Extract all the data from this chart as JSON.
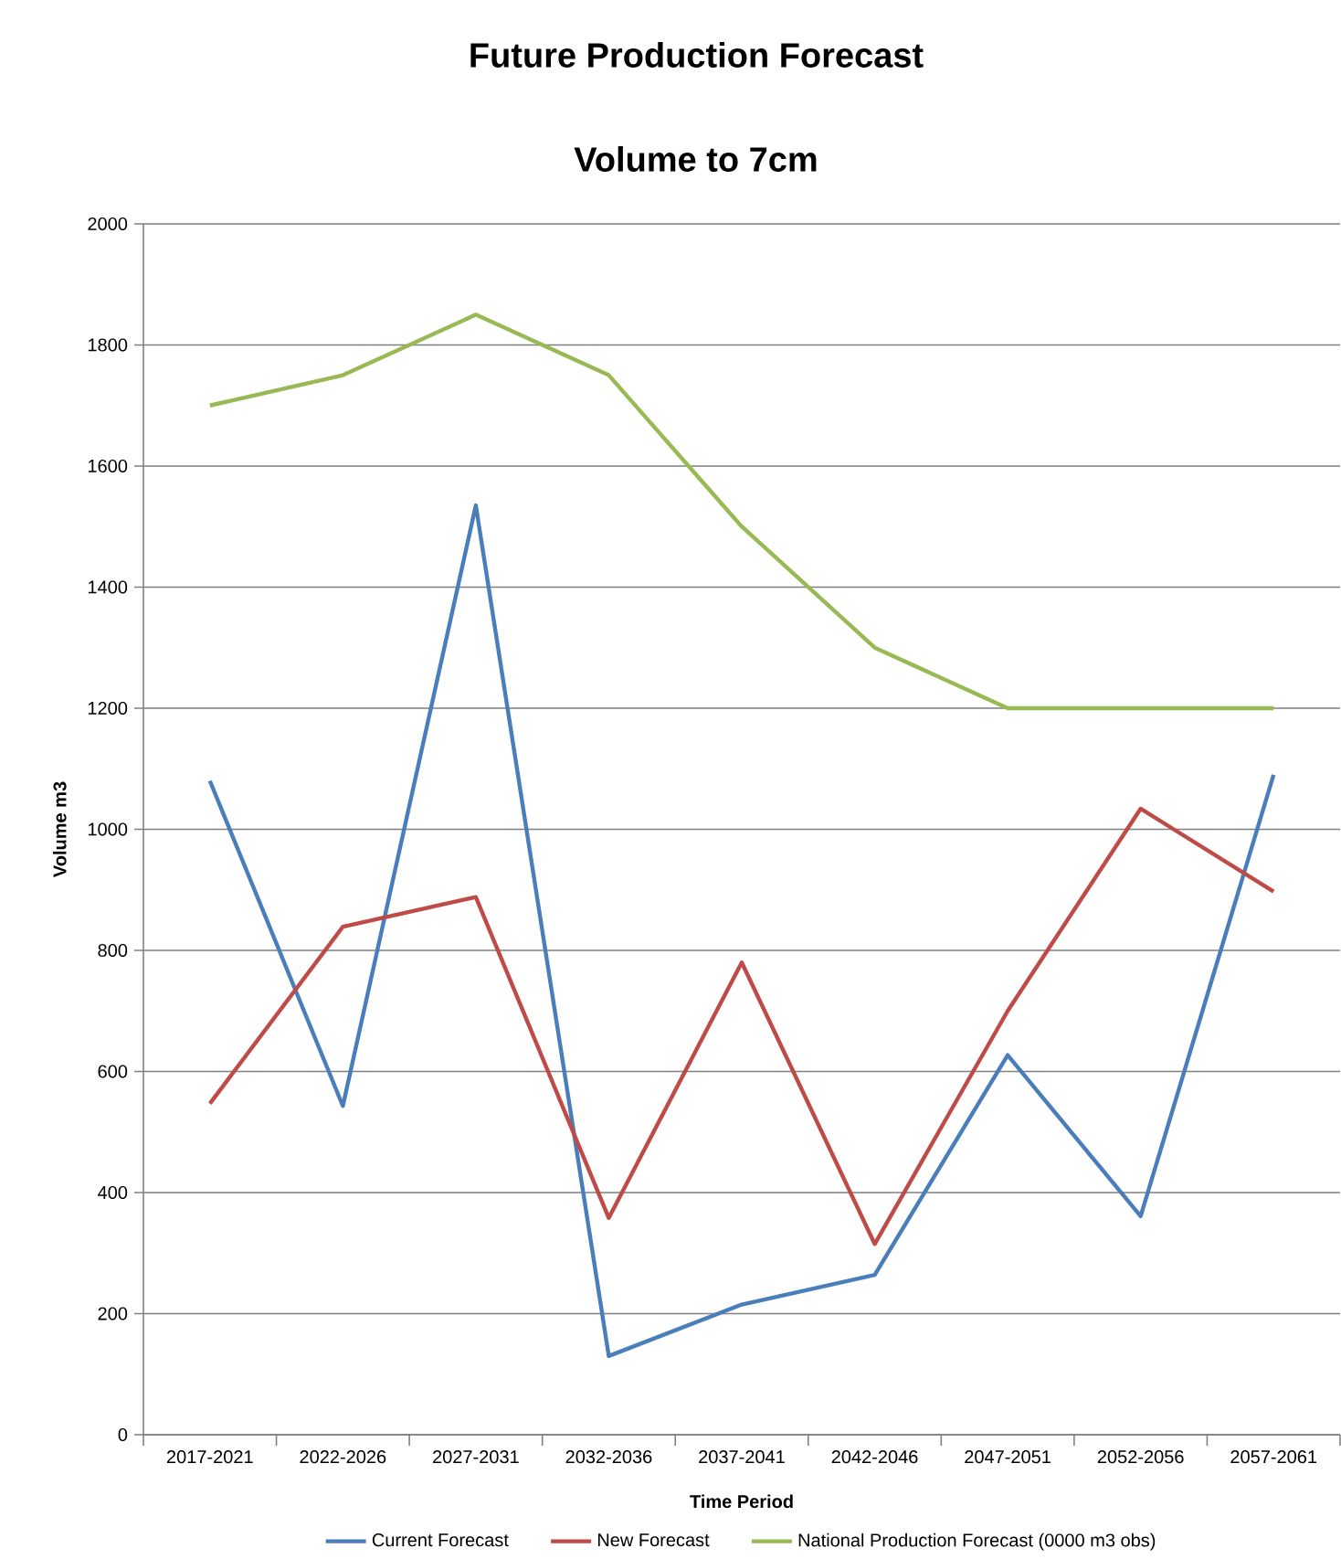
{
  "chart_data": {
    "type": "line",
    "title": "Future Production Forecast",
    "subtitle": "Volume to 7cm",
    "xlabel": "Time Period",
    "ylabel": "Volume m3",
    "categories": [
      "2017-2021",
      "2022-2026",
      "2027-2031",
      "2032-2036",
      "2037-2041",
      "2042-2046",
      "2047-2051",
      "2052-2056",
      "2057-2061"
    ],
    "series": [
      {
        "name": "Current Forecast",
        "color": "#4a7ebb",
        "values": [
          1080,
          543,
          1535,
          130,
          215,
          264,
          627,
          361,
          1090
        ]
      },
      {
        "name": "New Forecast",
        "color": "#be4b48",
        "values": [
          547,
          839,
          888,
          358,
          780,
          315,
          700,
          1034,
          897
        ]
      },
      {
        "name": "National Production Forecast (0000 m3 obs)",
        "color": "#98b954",
        "values": [
          1700,
          1750,
          1850,
          1750,
          1500,
          1300,
          1200,
          1200,
          1200
        ]
      }
    ],
    "ylim": [
      0,
      2000
    ],
    "yticks": [
      0,
      200,
      400,
      600,
      800,
      1000,
      1200,
      1400,
      1600,
      1800,
      2000
    ],
    "grid": "y",
    "legend": "bottom",
    "marker": "none",
    "line_style": "solid"
  }
}
